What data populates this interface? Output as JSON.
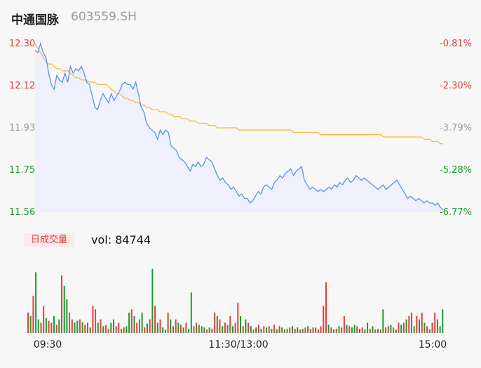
{
  "header": {
    "name": "中通国脉",
    "code": "603559.SH"
  },
  "volume": {
    "tab_label": "日成交量",
    "prefix": "vol: ",
    "value": "84744"
  },
  "colors": {
    "up": "#e43d3d",
    "down": "#1a9b2e",
    "neutral": "#999999",
    "price_line": "#5b8ff9",
    "avg_line": "#f5b94a",
    "area_fill": "#eef1fb"
  },
  "chart_data": {
    "type": "line",
    "price_ticks": [
      "12.30",
      "12.12",
      "11.93",
      "11.75",
      "11.56"
    ],
    "pct_ticks": [
      "-0.81%",
      "-2.30%",
      "-3.79%",
      "-5.28%",
      "-6.77%"
    ],
    "ylim": [
      11.56,
      12.3
    ],
    "x_ticks": [
      "09:30",
      "11:30/13:00",
      "15:00"
    ],
    "series": [
      {
        "values": [
          12.27,
          12.26,
          12.3,
          12.26,
          12.24,
          12.17,
          12.12,
          12.1,
          12.16,
          12.14,
          12.13,
          12.17,
          12.13,
          12.2,
          12.17,
          12.19,
          12.18,
          12.2,
          12.17,
          12.13,
          12.12,
          12.07,
          12.02,
          12.01,
          12.05,
          12.08,
          12.06,
          12.04,
          12.08,
          12.05,
          12.07,
          12.09,
          12.12,
          12.13,
          12.12,
          12.12,
          12.1,
          12.13,
          12.08,
          12.02,
          12.0,
          11.95,
          11.93,
          11.92,
          11.91,
          11.88,
          11.92,
          11.9,
          11.92,
          11.91,
          11.85,
          11.84,
          11.83,
          11.8,
          11.79,
          11.78,
          11.76,
          11.74,
          11.77,
          11.76,
          11.78,
          11.76,
          11.77,
          11.8,
          11.79,
          11.78,
          11.75,
          11.72,
          11.7,
          11.71,
          11.69,
          11.68,
          11.66,
          11.67,
          11.65,
          11.63,
          11.64,
          11.62,
          11.62,
          11.6,
          11.61,
          11.63,
          11.65,
          11.64,
          11.67,
          11.68,
          11.67,
          11.66,
          11.69,
          11.7,
          11.72,
          11.71,
          11.73,
          11.74,
          11.75,
          11.72,
          11.74,
          11.75,
          11.76,
          11.7,
          11.68,
          11.66,
          11.67,
          11.66,
          11.65,
          11.66,
          11.65,
          11.66,
          11.67,
          11.66,
          11.68,
          11.67,
          11.69,
          11.68,
          11.7,
          11.71,
          11.69,
          11.7,
          11.72,
          11.71,
          11.7,
          11.71,
          11.7,
          11.69,
          11.68,
          11.67,
          11.66,
          11.67,
          11.68,
          11.66,
          11.67,
          11.68,
          11.69,
          11.7,
          11.68,
          11.66,
          11.64,
          11.62,
          11.63,
          11.62,
          11.61,
          11.62,
          11.61,
          11.6,
          11.61,
          11.6,
          11.6,
          11.59,
          11.6,
          11.58,
          11.57
        ]
      },
      {
        "values": [
          12.3,
          12.28,
          12.26,
          12.24,
          12.22,
          12.21,
          12.21,
          12.2,
          12.19,
          12.19,
          12.18,
          12.18,
          12.18,
          12.17,
          12.16,
          12.15,
          12.15,
          12.14,
          12.14,
          12.14,
          12.13,
          12.13,
          12.13,
          12.12,
          12.12,
          12.12,
          12.12,
          12.11,
          12.1,
          12.09,
          12.08,
          12.08,
          12.07,
          12.06,
          12.06,
          12.05,
          12.05,
          12.04,
          12.04,
          12.03,
          12.03,
          12.02,
          12.02,
          12.01,
          12.01,
          12.01,
          12.0,
          12.0,
          12.0,
          11.99,
          11.99,
          11.98,
          11.98,
          11.98,
          11.97,
          11.97,
          11.97,
          11.96,
          11.96,
          11.96,
          11.95,
          11.95,
          11.95,
          11.95,
          11.94,
          11.94,
          11.94,
          11.93,
          11.93,
          11.93,
          11.93,
          11.93,
          11.93,
          11.93,
          11.93,
          11.92,
          11.92,
          11.92,
          11.92,
          11.92,
          11.92,
          11.92,
          11.92,
          11.92,
          11.92,
          11.92,
          11.92,
          11.92,
          11.92,
          11.92,
          11.92,
          11.92,
          11.92,
          11.92,
          11.92,
          11.91,
          11.91,
          11.91,
          11.91,
          11.91,
          11.91,
          11.91,
          11.91,
          11.91,
          11.91,
          11.9,
          11.9,
          11.9,
          11.9,
          11.9,
          11.9,
          11.9,
          11.9,
          11.9,
          11.9,
          11.9,
          11.9,
          11.9,
          11.9,
          11.9,
          11.9,
          11.9,
          11.9,
          11.9,
          11.9,
          11.9,
          11.9,
          11.9,
          11.89,
          11.89,
          11.89,
          11.89,
          11.89,
          11.89,
          11.89,
          11.89,
          11.89,
          11.89,
          11.89,
          11.89,
          11.89,
          11.89,
          11.89,
          11.88,
          11.88,
          11.88,
          11.87,
          11.87,
          11.87,
          11.86,
          11.86
        ]
      }
    ],
    "volume_bars": [
      {
        "v": 30,
        "c": "up"
      },
      {
        "v": 25,
        "c": "down"
      },
      {
        "v": 55,
        "c": "up"
      },
      {
        "v": 90,
        "c": "down"
      },
      {
        "v": 20,
        "c": "down"
      },
      {
        "v": 15,
        "c": "up"
      },
      {
        "v": 40,
        "c": "up"
      },
      {
        "v": 22,
        "c": "down"
      },
      {
        "v": 18,
        "c": "up"
      },
      {
        "v": 15,
        "c": "up"
      },
      {
        "v": 25,
        "c": "down"
      },
      {
        "v": 12,
        "c": "up"
      },
      {
        "v": 20,
        "c": "down"
      },
      {
        "v": 85,
        "c": "up"
      },
      {
        "v": 70,
        "c": "down"
      },
      {
        "v": 50,
        "c": "down"
      },
      {
        "v": 30,
        "c": "up"
      },
      {
        "v": 20,
        "c": "up"
      },
      {
        "v": 15,
        "c": "down"
      },
      {
        "v": 18,
        "c": "down"
      },
      {
        "v": 20,
        "c": "up"
      },
      {
        "v": 16,
        "c": "down"
      },
      {
        "v": 12,
        "c": "up"
      },
      {
        "v": 15,
        "c": "up"
      },
      {
        "v": 8,
        "c": "down"
      },
      {
        "v": 40,
        "c": "up"
      },
      {
        "v": 35,
        "c": "up"
      },
      {
        "v": 15,
        "c": "down"
      },
      {
        "v": 20,
        "c": "up"
      },
      {
        "v": 10,
        "c": "down"
      },
      {
        "v": 12,
        "c": "up"
      },
      {
        "v": 6,
        "c": "up"
      },
      {
        "v": 15,
        "c": "down"
      },
      {
        "v": 20,
        "c": "down"
      },
      {
        "v": 10,
        "c": "up"
      },
      {
        "v": 15,
        "c": "up"
      },
      {
        "v": 6,
        "c": "down"
      },
      {
        "v": 8,
        "c": "up"
      },
      {
        "v": 10,
        "c": "down"
      },
      {
        "v": 30,
        "c": "down"
      },
      {
        "v": 35,
        "c": "up"
      },
      {
        "v": 25,
        "c": "down"
      },
      {
        "v": 15,
        "c": "up"
      },
      {
        "v": 20,
        "c": "up"
      },
      {
        "v": 30,
        "c": "down"
      },
      {
        "v": 8,
        "c": "up"
      },
      {
        "v": 14,
        "c": "down"
      },
      {
        "v": 20,
        "c": "up"
      },
      {
        "v": 95,
        "c": "down"
      },
      {
        "v": 40,
        "c": "up"
      },
      {
        "v": 15,
        "c": "down"
      },
      {
        "v": 20,
        "c": "up"
      },
      {
        "v": 8,
        "c": "down"
      },
      {
        "v": 5,
        "c": "down"
      },
      {
        "v": 30,
        "c": "up"
      },
      {
        "v": 20,
        "c": "down"
      },
      {
        "v": 10,
        "c": "up"
      },
      {
        "v": 20,
        "c": "up"
      },
      {
        "v": 15,
        "c": "down"
      },
      {
        "v": 12,
        "c": "up"
      },
      {
        "v": 8,
        "c": "down"
      },
      {
        "v": 15,
        "c": "up"
      },
      {
        "v": 6,
        "c": "down"
      },
      {
        "v": 60,
        "c": "down"
      },
      {
        "v": 10,
        "c": "up"
      },
      {
        "v": 15,
        "c": "down"
      },
      {
        "v": 12,
        "c": "up"
      },
      {
        "v": 10,
        "c": "down"
      },
      {
        "v": 8,
        "c": "down"
      },
      {
        "v": 5,
        "c": "up"
      },
      {
        "v": 8,
        "c": "down"
      },
      {
        "v": 6,
        "c": "up"
      },
      {
        "v": 30,
        "c": "up"
      },
      {
        "v": 25,
        "c": "down"
      },
      {
        "v": 20,
        "c": "up"
      },
      {
        "v": 10,
        "c": "down"
      },
      {
        "v": 15,
        "c": "up"
      },
      {
        "v": 12,
        "c": "down"
      },
      {
        "v": 25,
        "c": "up"
      },
      {
        "v": 10,
        "c": "down"
      },
      {
        "v": 15,
        "c": "up"
      },
      {
        "v": 45,
        "c": "up"
      },
      {
        "v": 25,
        "c": "down"
      },
      {
        "v": 10,
        "c": "up"
      },
      {
        "v": 20,
        "c": "down"
      },
      {
        "v": 15,
        "c": "up"
      },
      {
        "v": 10,
        "c": "down"
      },
      {
        "v": 5,
        "c": "up"
      },
      {
        "v": 8,
        "c": "down"
      },
      {
        "v": 12,
        "c": "up"
      },
      {
        "v": 6,
        "c": "down"
      },
      {
        "v": 10,
        "c": "up"
      },
      {
        "v": 8,
        "c": "down"
      },
      {
        "v": 10,
        "c": "up"
      },
      {
        "v": 6,
        "c": "down"
      },
      {
        "v": 12,
        "c": "up"
      },
      {
        "v": 5,
        "c": "down"
      },
      {
        "v": 10,
        "c": "up"
      },
      {
        "v": 8,
        "c": "down"
      },
      {
        "v": 5,
        "c": "down"
      },
      {
        "v": 6,
        "c": "up"
      },
      {
        "v": 8,
        "c": "up"
      },
      {
        "v": 10,
        "c": "down"
      },
      {
        "v": 6,
        "c": "up"
      },
      {
        "v": 8,
        "c": "down"
      },
      {
        "v": 5,
        "c": "up"
      },
      {
        "v": 6,
        "c": "down"
      },
      {
        "v": 8,
        "c": "up"
      },
      {
        "v": 10,
        "c": "down"
      },
      {
        "v": 6,
        "c": "up"
      },
      {
        "v": 8,
        "c": "up"
      },
      {
        "v": 8,
        "c": "down"
      },
      {
        "v": 5,
        "c": "up"
      },
      {
        "v": 10,
        "c": "up"
      },
      {
        "v": 40,
        "c": "up"
      },
      {
        "v": 75,
        "c": "up"
      },
      {
        "v": 12,
        "c": "down"
      },
      {
        "v": 8,
        "c": "up"
      },
      {
        "v": 5,
        "c": "down"
      },
      {
        "v": 6,
        "c": "up"
      },
      {
        "v": 10,
        "c": "down"
      },
      {
        "v": 8,
        "c": "up"
      },
      {
        "v": 25,
        "c": "up"
      },
      {
        "v": 12,
        "c": "down"
      },
      {
        "v": 10,
        "c": "up"
      },
      {
        "v": 8,
        "c": "down"
      },
      {
        "v": 12,
        "c": "down"
      },
      {
        "v": 10,
        "c": "up"
      },
      {
        "v": 6,
        "c": "down"
      },
      {
        "v": 8,
        "c": "up"
      },
      {
        "v": 5,
        "c": "down"
      },
      {
        "v": 15,
        "c": "down"
      },
      {
        "v": 6,
        "c": "up"
      },
      {
        "v": 10,
        "c": "down"
      },
      {
        "v": 5,
        "c": "up"
      },
      {
        "v": 6,
        "c": "down"
      },
      {
        "v": 5,
        "c": "up"
      },
      {
        "v": 35,
        "c": "down"
      },
      {
        "v": 8,
        "c": "up"
      },
      {
        "v": 10,
        "c": "up"
      },
      {
        "v": 12,
        "c": "down"
      },
      {
        "v": 8,
        "c": "up"
      },
      {
        "v": 5,
        "c": "down"
      },
      {
        "v": 15,
        "c": "up"
      },
      {
        "v": 12,
        "c": "down"
      },
      {
        "v": 15,
        "c": "up"
      },
      {
        "v": 20,
        "c": "down"
      },
      {
        "v": 25,
        "c": "up"
      },
      {
        "v": 30,
        "c": "up"
      },
      {
        "v": 10,
        "c": "down"
      },
      {
        "v": 25,
        "c": "up"
      },
      {
        "v": 20,
        "c": "down"
      },
      {
        "v": 30,
        "c": "up"
      },
      {
        "v": 15,
        "c": "down"
      },
      {
        "v": 10,
        "c": "up"
      },
      {
        "v": 5,
        "c": "down"
      },
      {
        "v": 15,
        "c": "up"
      },
      {
        "v": 30,
        "c": "up"
      },
      {
        "v": 20,
        "c": "down"
      },
      {
        "v": 10,
        "c": "down"
      },
      {
        "v": 35,
        "c": "down"
      }
    ]
  }
}
